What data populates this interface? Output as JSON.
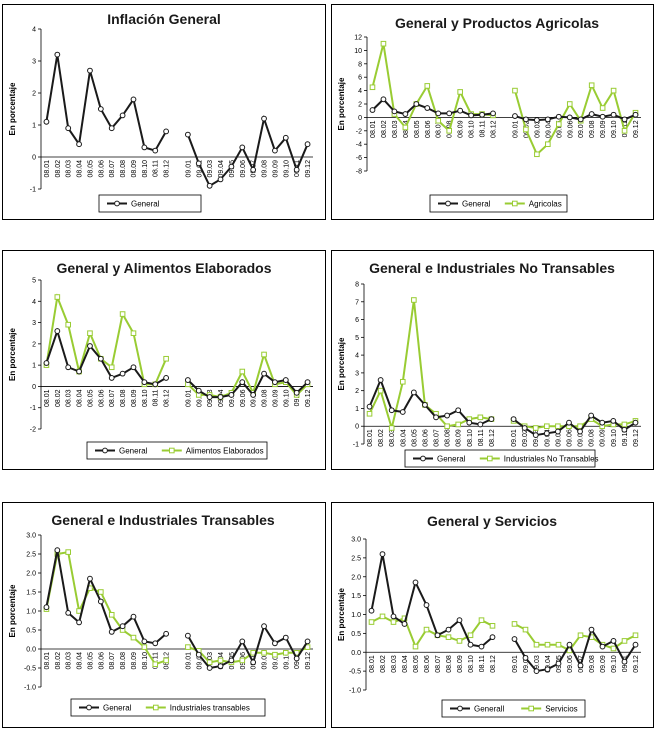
{
  "colors": {
    "general": "#1a1a1a",
    "comparison": "#99cc33",
    "axis": "#000000"
  },
  "chart_data": [
    {
      "type": "line",
      "title": "Inflación General",
      "ylabel": "En porcentaje",
      "ylim": [
        -1,
        4
      ],
      "ystep": 1,
      "ytick_format": "int",
      "categories": [
        "08.01",
        "08.02",
        "08.03",
        "08.04",
        "08.05",
        "08.06",
        "08.07",
        "08.08",
        "08.09",
        "08.10",
        "08.11",
        "08.12",
        "",
        "09.01",
        "09.02",
        "09.03",
        "09.04",
        "09.05",
        "09.06",
        "09.07",
        "09.08",
        "09.09",
        "09.10",
        "09.11",
        "09.12"
      ],
      "series": [
        {
          "name": "General",
          "role": "general",
          "values": [
            1.1,
            3.2,
            0.9,
            0.4,
            2.7,
            1.5,
            0.9,
            1.3,
            1.8,
            0.3,
            0.2,
            0.8,
            null,
            0.7,
            -0.2,
            -0.9,
            -0.7,
            -0.3,
            0.3,
            -0.4,
            1.2,
            0.2,
            0.6,
            -0.4,
            0.4
          ]
        }
      ],
      "legend_placement": "bottom"
    },
    {
      "type": "line",
      "title": "General y Productos Agricolas",
      "ylabel": "En porcentaje",
      "ylim": [
        -8,
        12
      ],
      "ystep": 2,
      "ytick_format": "int",
      "categories": [
        "08.01",
        "08.02",
        "08.03",
        "08.04",
        "08.05",
        "08.06",
        "08.07",
        "08.08",
        "08.09",
        "08.10",
        "08.11",
        "08.12",
        "",
        "09.01",
        "09.02",
        "09.03",
        "09.04",
        "09.05",
        "09.06",
        "09.07",
        "09.08",
        "09.09",
        "09.10",
        "09.11",
        "09.12"
      ],
      "series": [
        {
          "name": "General",
          "role": "general",
          "values": [
            1.1,
            2.7,
            0.9,
            0.5,
            2.0,
            1.4,
            0.6,
            0.6,
            1.0,
            0.3,
            0.4,
            0.6,
            null,
            0.2,
            -0.3,
            -0.4,
            -0.3,
            0.1,
            0.0,
            -0.3,
            0.5,
            0.1,
            0.4,
            -0.3,
            0.4
          ]
        },
        {
          "name": "Agricolas",
          "role": "comparison",
          "values": [
            4.5,
            11.0,
            0.5,
            -1.5,
            2.0,
            4.7,
            -0.5,
            -2.0,
            3.8,
            0.5,
            0.5,
            0.3,
            null,
            4.0,
            -1.8,
            -5.5,
            -4.0,
            -1.0,
            2.0,
            -0.5,
            4.8,
            1.4,
            4.0,
            -2.0,
            0.7
          ]
        }
      ],
      "legend_placement": "bottom"
    },
    {
      "type": "line",
      "title": "General y Alimentos Elaborados",
      "ylabel": "En porcentaje",
      "ylim": [
        -2,
        5
      ],
      "ystep": 1,
      "ytick_format": "int",
      "categories": [
        "08.01",
        "08.02",
        "08.03",
        "08.04",
        "08.05",
        "08.06",
        "08.07",
        "08.08",
        "08.09",
        "08.10",
        "08.11",
        "08.12",
        "",
        "09.01",
        "09.02",
        "09.03",
        "09.04",
        "09.05",
        "09.06",
        "09.07",
        "09.08",
        "09.09",
        "09.10",
        "09.11",
        "09.12"
      ],
      "series": [
        {
          "name": "General",
          "role": "general",
          "values": [
            1.1,
            2.6,
            0.9,
            0.7,
            1.9,
            1.3,
            0.4,
            0.6,
            0.9,
            0.2,
            0.1,
            0.4,
            null,
            0.3,
            -0.2,
            -0.5,
            -0.5,
            -0.4,
            0.2,
            -0.4,
            0.6,
            0.2,
            0.3,
            -0.3,
            0.2
          ]
        },
        {
          "name": "Alimentos Elaborados",
          "role": "comparison",
          "values": [
            1.0,
            4.2,
            2.9,
            0.7,
            2.5,
            1.3,
            0.9,
            3.4,
            2.5,
            0.1,
            0.1,
            1.3,
            null,
            0.1,
            -0.4,
            -0.4,
            -0.5,
            -0.3,
            0.7,
            -0.3,
            1.5,
            0.1,
            0.2,
            -0.4,
            0.1
          ]
        }
      ],
      "legend_placement": "bottom"
    },
    {
      "type": "line",
      "title": "General e Industriales No Transables",
      "ylabel": "En porcentaje",
      "ylim": [
        -1,
        8
      ],
      "ystep": 1,
      "ytick_format": "int",
      "categories": [
        "08.01",
        "08.02",
        "08.03",
        "08.04",
        "08.05",
        "08.06",
        "08.07",
        "08.08",
        "08.09",
        "08.10",
        "08.11",
        "08.12",
        "",
        "09.01",
        "09.02",
        "09.03",
        "09.04",
        "09.05",
        "09.06",
        "09.07",
        "09.08",
        "09.09",
        "09.10",
        "09.11",
        "09.12"
      ],
      "series": [
        {
          "name": "General",
          "role": "general",
          "values": [
            1.1,
            2.6,
            0.9,
            0.8,
            1.9,
            1.2,
            0.5,
            0.6,
            0.9,
            0.2,
            0.1,
            0.4,
            null,
            0.4,
            -0.1,
            -0.5,
            -0.4,
            -0.3,
            0.2,
            -0.3,
            0.6,
            0.2,
            0.3,
            -0.2,
            0.2
          ]
        },
        {
          "name": "Industriales No Transables",
          "role": "comparison",
          "values": [
            0.7,
            2.0,
            -0.1,
            2.5,
            7.1,
            1.2,
            0.7,
            0.0,
            0.1,
            0.4,
            0.5,
            0.4,
            null,
            0.3,
            0.0,
            -0.1,
            0.0,
            0.0,
            0.0,
            0.0,
            0.4,
            0.0,
            0.1,
            0.1,
            0.3
          ]
        }
      ],
      "legend_placement": "bottom"
    },
    {
      "type": "line",
      "title": "General e Industriales Transables",
      "ylabel": "En porcentaje",
      "ylim": [
        -1.0,
        3.0
      ],
      "ystep": 0.5,
      "ytick_format": "one-decimal",
      "categories": [
        "08.01",
        "08.02",
        "08.03",
        "08.04",
        "08.05",
        "08.06",
        "08.07",
        "08.08",
        "08.09",
        "08.10",
        "08.11",
        "08.12",
        "",
        "09.01",
        "09.02",
        "09.03",
        "09.04",
        "09.05",
        "09.06",
        "09.07",
        "09.08",
        "09.09",
        "09.10",
        "09.11",
        "09.12"
      ],
      "series": [
        {
          "name": "General",
          "role": "general",
          "values": [
            1.1,
            2.6,
            0.95,
            0.7,
            1.85,
            1.25,
            0.45,
            0.6,
            0.85,
            0.2,
            0.15,
            0.4,
            null,
            0.35,
            -0.15,
            -0.5,
            -0.45,
            -0.3,
            0.2,
            -0.35,
            0.6,
            0.15,
            0.3,
            -0.25,
            0.2
          ]
        },
        {
          "name": "Industriales transables",
          "role": "comparison",
          "values": [
            1.05,
            2.5,
            2.55,
            1.0,
            1.6,
            1.5,
            0.9,
            0.5,
            0.3,
            0.05,
            -0.4,
            -0.3,
            null,
            0.05,
            -0.05,
            -0.35,
            -0.3,
            -0.35,
            -0.3,
            -0.1,
            -0.1,
            -0.15,
            -0.1,
            -0.1,
            0.05
          ]
        }
      ],
      "legend_placement": "bottom"
    },
    {
      "type": "line",
      "title": "General y Servicios",
      "ylabel": "En porcentaje",
      "ylim": [
        -1.0,
        3.0
      ],
      "ystep": 0.5,
      "ytick_format": "one-decimal",
      "categories": [
        "08.01",
        "08.02",
        "08.03",
        "08.04",
        "08.05",
        "08.06",
        "08.07",
        "08.08",
        "08.09",
        "08.10",
        "08.11",
        "08.12",
        "",
        "09.01",
        "09.02",
        "09.03",
        "09.04",
        "09.05",
        "09.06",
        "09.07",
        "09.08",
        "09.09",
        "09.10",
        "09.11",
        "09.12"
      ],
      "series": [
        {
          "name": "Generall",
          "role": "general",
          "values": [
            1.1,
            2.6,
            0.95,
            0.75,
            1.85,
            1.25,
            0.45,
            0.6,
            0.85,
            0.2,
            0.15,
            0.4,
            null,
            0.35,
            -0.15,
            -0.5,
            -0.45,
            -0.3,
            0.2,
            -0.35,
            0.6,
            0.15,
            0.3,
            -0.25,
            0.2
          ]
        },
        {
          "name": "Servicios",
          "role": "comparison",
          "values": [
            0.8,
            0.95,
            0.8,
            0.9,
            0.15,
            0.6,
            0.45,
            0.4,
            0.3,
            0.45,
            0.85,
            0.7,
            null,
            0.75,
            0.6,
            0.2,
            0.2,
            0.2,
            0.05,
            0.45,
            0.4,
            0.2,
            0.1,
            0.3,
            0.45
          ]
        }
      ],
      "legend_placement": "bottom"
    }
  ]
}
